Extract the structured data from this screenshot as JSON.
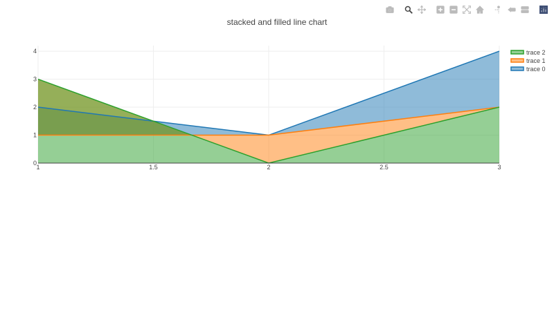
{
  "modebar": {
    "buttons": [
      {
        "icon": "camera-icon",
        "group": 0
      },
      {
        "icon": "zoom-icon",
        "group": 1,
        "active": true
      },
      {
        "icon": "pan-icon",
        "group": 1
      },
      {
        "icon": "zoom-in-icon",
        "group": 2
      },
      {
        "icon": "zoom-out-icon",
        "group": 2
      },
      {
        "icon": "autoscale-icon",
        "group": 2
      },
      {
        "icon": "home-icon",
        "group": 2
      },
      {
        "icon": "spike-lines-icon",
        "group": 3
      },
      {
        "icon": "hover-closest-icon",
        "group": 3
      },
      {
        "icon": "hover-compare-icon",
        "group": 3
      },
      {
        "icon": "plotly-logo-icon",
        "group": 4
      }
    ],
    "color": "#bbbbbb",
    "active_color": "#444444",
    "logo_color": "#3f4f75"
  },
  "chart_data": {
    "type": "area",
    "title": "stacked and filled line chart",
    "x": [
      1,
      2,
      3
    ],
    "xlim": [
      1,
      3
    ],
    "ylim": [
      0,
      4.2
    ],
    "xticks": [
      "1",
      "1.5",
      "2",
      "2.5",
      "3"
    ],
    "xtick_values": [
      1,
      1.5,
      2,
      2.5,
      3
    ],
    "yticks": [
      "0",
      "1",
      "2",
      "3",
      "4"
    ],
    "ytick_values": [
      0,
      1,
      2,
      3,
      4
    ],
    "grid": true,
    "legend_position": "top-right",
    "series": [
      {
        "name": "trace 0",
        "values": [
          2,
          1,
          4
        ],
        "color": "#1f77b4",
        "fill": "tonexty"
      },
      {
        "name": "trace 1",
        "values": [
          1,
          1,
          2
        ],
        "color": "#ff7f0e",
        "fill": "tonexty"
      },
      {
        "name": "trace 2",
        "values": [
          3,
          0,
          2
        ],
        "color": "#2ca02c",
        "fill": "tozeroy"
      }
    ],
    "legend_order": [
      "trace 2",
      "trace 1",
      "trace 0"
    ]
  }
}
